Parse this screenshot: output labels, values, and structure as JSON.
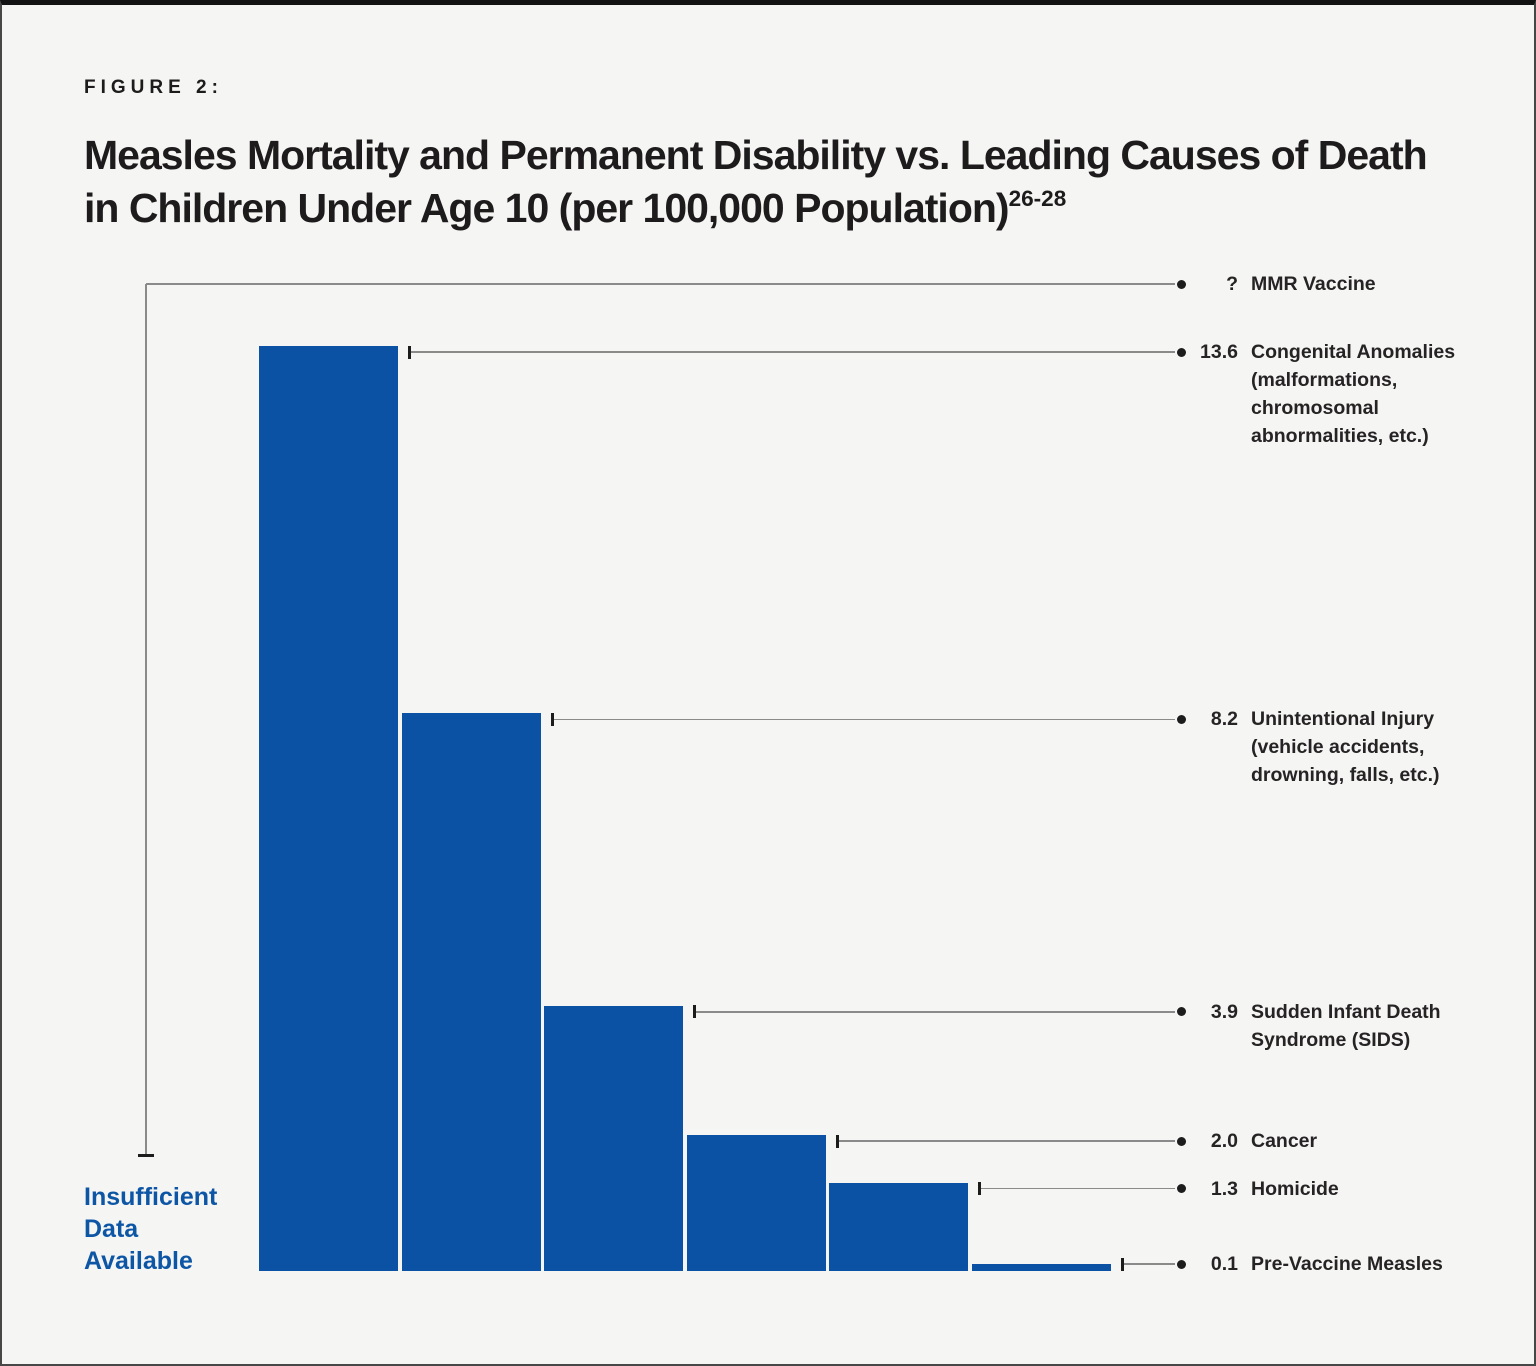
{
  "figure": {
    "kicker": "FIGURE 2:"
  },
  "chart_data": {
    "type": "bar",
    "title": "Measles Mortality and Permanent Disability vs. Leading Causes of Death in Children Under Age 10 (per 100,000 Population)",
    "title_superscript": "26-28",
    "unit_note": "per 100,000 population",
    "ylim": [
      0,
      14
    ],
    "grid": false,
    "legend": false,
    "bar_color": "#0B52A5",
    "annotation": "Insufficient Data Available",
    "categories": [
      "MMR Vaccine",
      "Congenital Anomalies (malformations, chromosomal abnormalities, etc.)",
      "Unintentional Injury (vehicle accidents, drowning, falls, etc.)",
      "Sudden Infant Death Syndrome (SIDS)",
      "Cancer",
      "Homicide",
      "Pre-Vaccine Measles"
    ],
    "values": [
      null,
      13.6,
      8.2,
      3.9,
      2.0,
      1.3,
      0.1
    ],
    "rows": [
      {
        "id": "mmr-vaccine",
        "label": "MMR Vaccine",
        "value": null,
        "value_label": "?",
        "note": "Insufficient Data Available"
      },
      {
        "id": "congenital-anomalies",
        "label": "Congenital Anomalies (malformations, chromosomal abnormalities, etc.)",
        "value": 13.6,
        "value_label": "13.6"
      },
      {
        "id": "unintentional-injury",
        "label": "Unintentional Injury (vehicle accidents, drowning, falls, etc.)",
        "value": 8.2,
        "value_label": "8.2"
      },
      {
        "id": "sids",
        "label": "Sudden Infant Death Syndrome (SIDS)",
        "value": 3.9,
        "value_label": "3.9"
      },
      {
        "id": "cancer",
        "label": "Cancer",
        "value": 2.0,
        "value_label": "2.0"
      },
      {
        "id": "homicide",
        "label": "Homicide",
        "value": 1.3,
        "value_label": "1.3"
      },
      {
        "id": "pre-vaccine-measles",
        "label": "Pre-Vaccine Measles",
        "value": 0.1,
        "value_label": "0.1"
      }
    ]
  }
}
